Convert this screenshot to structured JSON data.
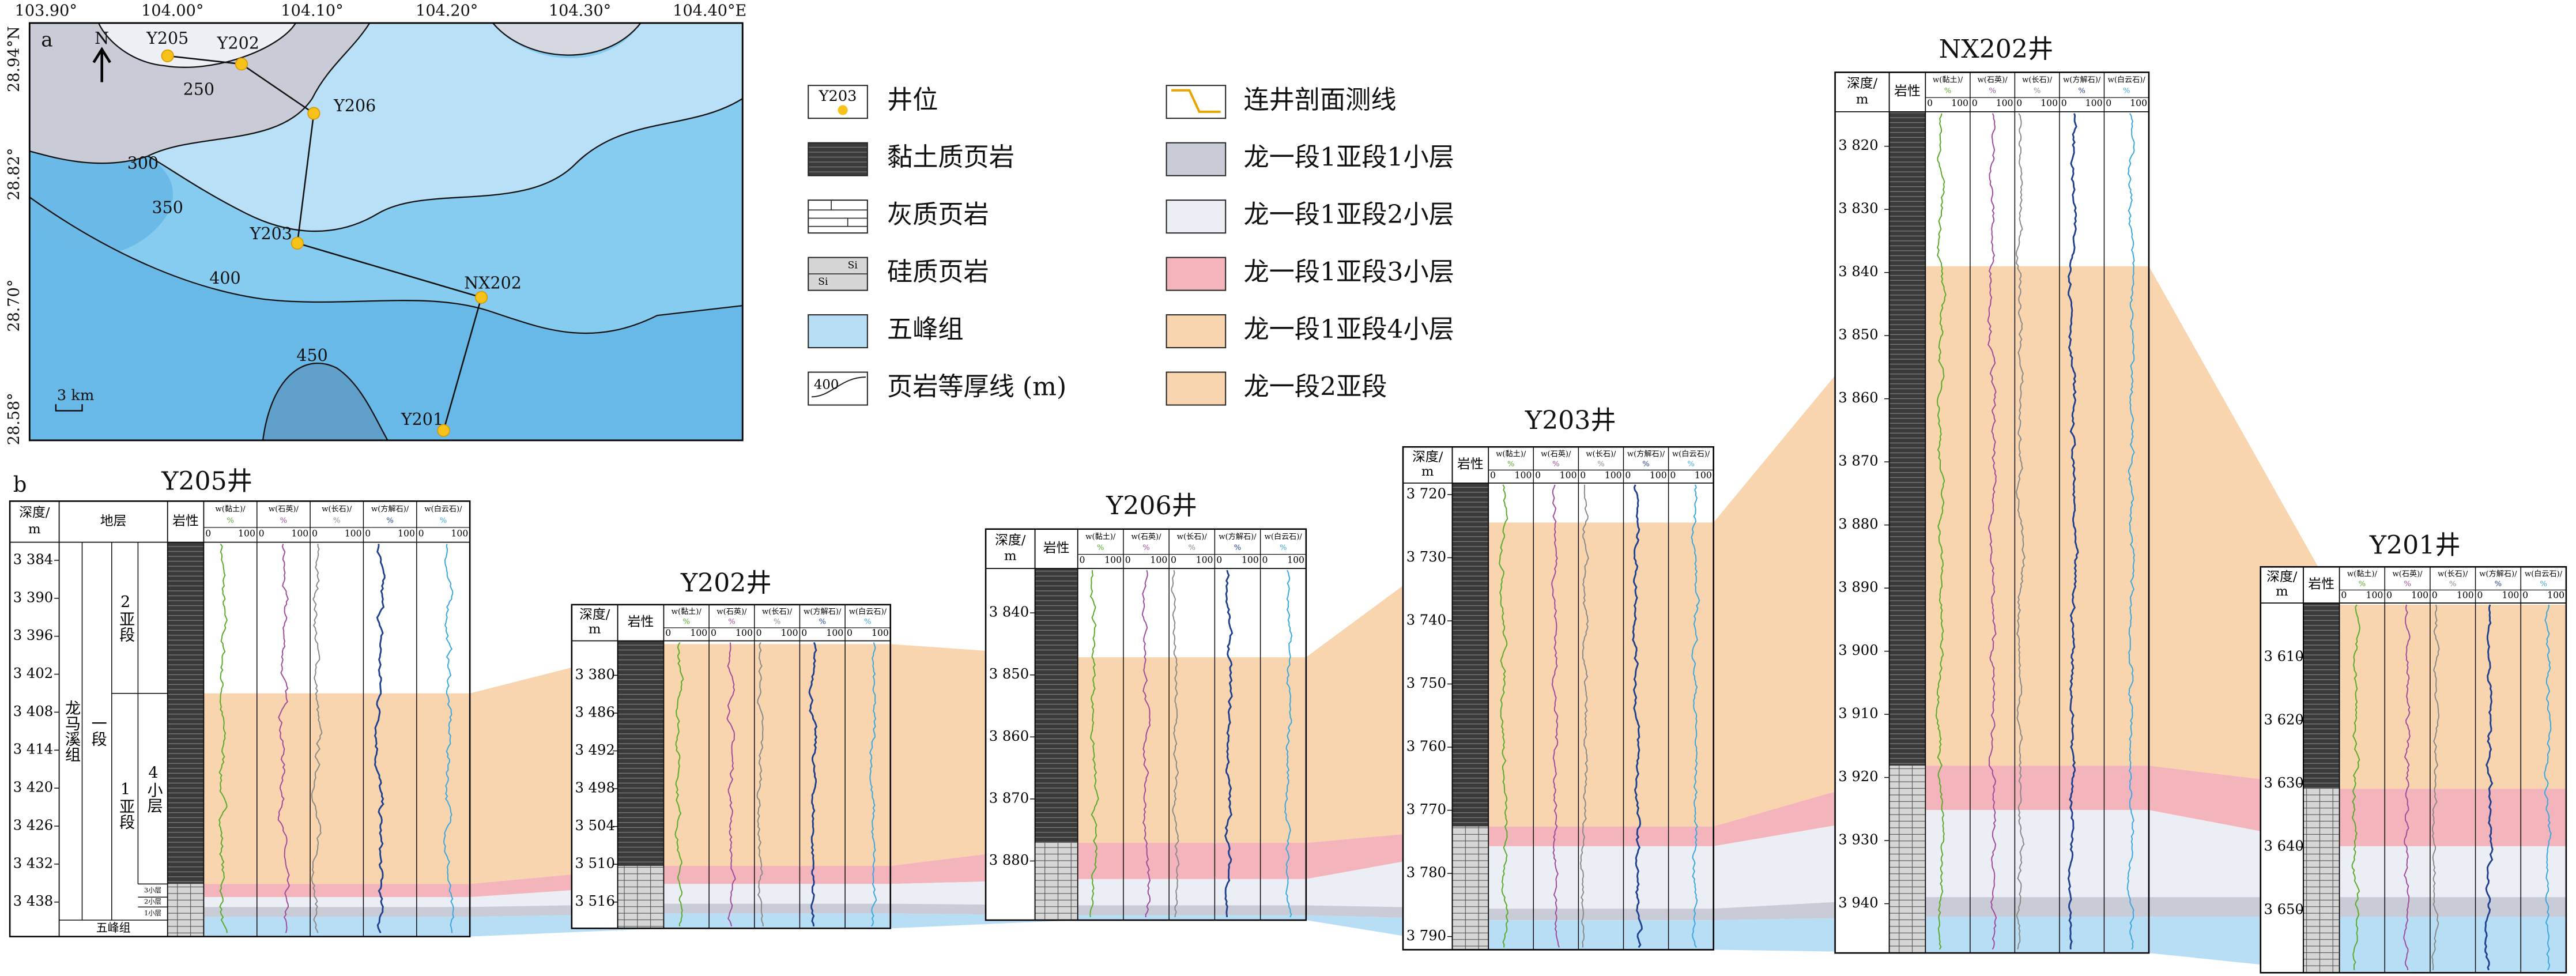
{
  "map": {
    "label": "a",
    "north": "N",
    "scale_bar": "3 km",
    "lon_labels": [
      "103.90°",
      "104.00°",
      "104.10°",
      "104.20°",
      "104.30°",
      "104.40°E"
    ],
    "lat_labels": [
      "28.94°N",
      "28.82°",
      "28.70°",
      "28.58°"
    ],
    "wells": [
      "Y205",
      "Y202",
      "Y206",
      "Y203",
      "NX202",
      "Y201"
    ],
    "contours": [
      "250",
      "300",
      "350",
      "400",
      "450"
    ]
  },
  "legend": {
    "items": [
      {
        "symbol_text": "Y203",
        "label": "井位"
      },
      {
        "label": "黏土质页岩"
      },
      {
        "label": "灰质页岩"
      },
      {
        "symbol_text": "Si",
        "label": "硅质页岩"
      },
      {
        "label": "五峰组"
      },
      {
        "symbol_text": "400",
        "label": "页岩等厚线 (m)"
      },
      {
        "label": "连井剖面测线"
      },
      {
        "label": "龙一段1亚段1小层"
      },
      {
        "label": "龙一段1亚段2小层"
      },
      {
        "label": "龙一段1亚段3小层"
      },
      {
        "label": "龙一段1亚段4小层"
      },
      {
        "label": "龙一段2亚段"
      }
    ]
  },
  "section": {
    "label": "b",
    "headers": {
      "depth": [
        "深度/",
        "m"
      ],
      "strata": "地层",
      "lithology": "岩性",
      "columns": [
        [
          "w(黏土)/",
          "%"
        ],
        [
          "w(石英)/",
          "%"
        ],
        [
          "w(长石)/",
          "%"
        ],
        [
          "w(方解石)/",
          "%"
        ],
        [
          "w(白云石)/",
          "%"
        ]
      ],
      "scale_min": "0",
      "scale_max": "100"
    },
    "strata": {
      "formation": "龙马溪组",
      "member": "一段",
      "submember2": "2亚段",
      "submember1": "1亚段",
      "layer4": "4小层",
      "layer3": "3小层",
      "layer2": "2小层",
      "layer1": "1小层",
      "wufeng": "五峰组"
    },
    "wells": [
      {
        "title": "Y205井",
        "depths": [
          "3 384",
          "3 390",
          "3 396",
          "3 402",
          "3 408",
          "3 414",
          "3 420",
          "3 426",
          "3 432",
          "3 438"
        ]
      },
      {
        "title": "Y202井",
        "depths": [
          "3 380",
          "3 486",
          "3 492",
          "3 498",
          "3 504",
          "3 510",
          "3 516"
        ]
      },
      {
        "title": "Y206井",
        "depths": [
          "3 840",
          "3 850",
          "3 860",
          "3 870",
          "3 880"
        ]
      },
      {
        "title": "Y203井",
        "depths": [
          "3 720",
          "3 730",
          "3 740",
          "3 750",
          "3 760",
          "3 770",
          "3 780",
          "3 790"
        ]
      },
      {
        "title": "NX202井",
        "depths": [
          "3 820",
          "3 830",
          "3 840",
          "3 850",
          "3 860",
          "3 870",
          "3 880",
          "3 890",
          "3 900",
          "3 910",
          "3 920",
          "3 930",
          "3 940"
        ]
      },
      {
        "title": "Y201井",
        "depths": [
          "3 610",
          "3 620",
          "3 630",
          "3 640",
          "3 650"
        ]
      }
    ]
  }
}
